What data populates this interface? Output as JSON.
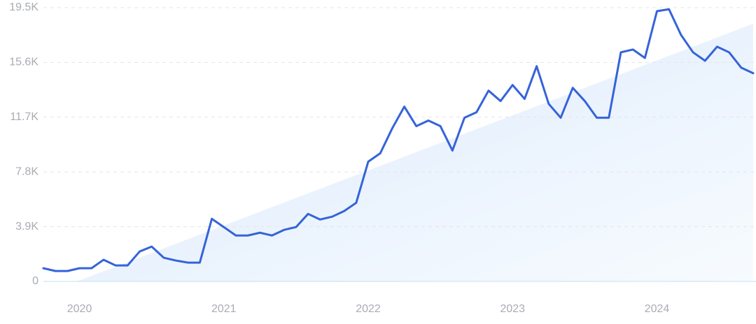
{
  "chart_data": {
    "type": "line",
    "categories": [
      null,
      null,
      null,
      "2020",
      null,
      null,
      null,
      null,
      null,
      null,
      null,
      null,
      null,
      null,
      null,
      "2021",
      null,
      null,
      null,
      null,
      null,
      null,
      null,
      null,
      null,
      null,
      null,
      "2022",
      null,
      null,
      null,
      null,
      null,
      null,
      null,
      null,
      null,
      null,
      null,
      "2023",
      null,
      null,
      null,
      null,
      null,
      null,
      null,
      null,
      null,
      null,
      null,
      "2024",
      null,
      null,
      null,
      null,
      null,
      null,
      null,
      null
    ],
    "series": [
      {
        "color": "#3563d9",
        "values": [
          940,
          740,
          740,
          940,
          940,
          1540,
          1140,
          1140,
          2130,
          2480,
          1690,
          1490,
          1340,
          1340,
          4460,
          3870,
          3270,
          3270,
          3470,
          3270,
          3670,
          3870,
          4810,
          4410,
          4610,
          5010,
          5600,
          8530,
          9130,
          10910,
          12450,
          11060,
          11460,
          11060,
          9320,
          11660,
          12050,
          13590,
          12850,
          13990,
          13000,
          15330,
          12650,
          11660,
          13790,
          12850,
          11660,
          11660,
          16320,
          16520,
          15920,
          19250,
          19390,
          17560,
          16320,
          15720,
          16720,
          16320,
          15230,
          14830
        ]
      }
    ],
    "trend": {
      "x": [
        2.8,
        59
      ],
      "values": [
        0,
        18360
      ],
      "color": "#dbe9fb"
    },
    "ylim": [
      0,
      19500
    ],
    "yticks": [
      0,
      {
        "value": 3900,
        "label": "3.9K"
      },
      {
        "value": 7800,
        "label": "7.8K"
      },
      {
        "value": 11700,
        "label": "11.7K"
      },
      {
        "value": 15600,
        "label": "15.6K"
      },
      {
        "value": 19500,
        "label": "19.5K"
      }
    ],
    "grid": true
  }
}
